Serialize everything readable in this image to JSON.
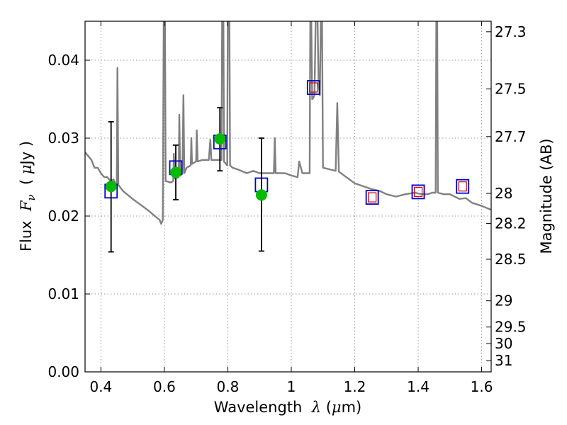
{
  "chart_data": {
    "type": "scatter",
    "title": "",
    "xlabel": "Wavelength  λ (μm)",
    "xlabel_parts": [
      "Wavelength  ",
      "λ",
      " (",
      "μ",
      "m)"
    ],
    "ylabel": "Flux  Fν  ( μJy )",
    "ylabel_parts": [
      "Flux  ",
      "F",
      "ν",
      "  ( ",
      "μ",
      "Jy )"
    ],
    "y2label": "Magnitude (AB)",
    "xlim": [
      0.35,
      1.63
    ],
    "ylim": [
      0.0,
      0.045
    ],
    "grid": true,
    "x_ticks": [
      {
        "value": 0.4,
        "label": "0.4"
      },
      {
        "value": 0.6,
        "label": "0.6"
      },
      {
        "value": 0.8,
        "label": "0.8"
      },
      {
        "value": 1.0,
        "label": "1"
      },
      {
        "value": 1.2,
        "label": "1.2"
      },
      {
        "value": 1.4,
        "label": "1.4"
      },
      {
        "value": 1.6,
        "label": "1.6"
      }
    ],
    "y_ticks": [
      {
        "value": 0.0,
        "label": "0.00"
      },
      {
        "value": 0.01,
        "label": "0.01"
      },
      {
        "value": 0.02,
        "label": "0.02"
      },
      {
        "value": 0.03,
        "label": "0.03"
      },
      {
        "value": 0.04,
        "label": "0.04"
      }
    ],
    "y2_ticks": [
      {
        "mag": 27.3,
        "label": "27.3"
      },
      {
        "mag": 27.5,
        "label": "27.5"
      },
      {
        "mag": 27.7,
        "label": "27.7"
      },
      {
        "mag": 28.0,
        "label": "28"
      },
      {
        "mag": 28.2,
        "label": "28.2"
      },
      {
        "mag": 28.5,
        "label": "28.5"
      },
      {
        "mag": 29.0,
        "label": "29"
      },
      {
        "mag": 29.5,
        "label": "29.5"
      },
      {
        "mag": 30.0,
        "label": "30"
      },
      {
        "mag": 31.0,
        "label": "31"
      }
    ],
    "colors": {
      "sed": "#808080",
      "observed": "#00bb00",
      "model_box": "#0000cc",
      "model_inner": "#cc0000",
      "errorbar": "#000000",
      "grid": "#9a9a9a"
    },
    "series": [
      {
        "kind": "line",
        "points": [
          [
            0.35,
            0.0282
          ],
          [
            0.37,
            0.0272
          ],
          [
            0.38,
            0.0262
          ],
          [
            0.39,
            0.0262
          ],
          [
            0.4,
            0.0255
          ],
          [
            0.41,
            0.025
          ],
          [
            0.42,
            0.025
          ],
          [
            0.43,
            0.0245
          ],
          [
            0.44,
            0.0247
          ],
          [
            0.445,
            0.0242
          ],
          [
            0.45,
            0.024
          ],
          [
            0.452,
            0.039
          ],
          [
            0.455,
            0.024
          ],
          [
            0.47,
            0.0232
          ],
          [
            0.5,
            0.0222
          ],
          [
            0.53,
            0.0213
          ],
          [
            0.55,
            0.0207
          ],
          [
            0.57,
            0.02
          ],
          [
            0.585,
            0.0195
          ],
          [
            0.59,
            0.019
          ],
          [
            0.595,
            0.0195
          ],
          [
            0.598,
            0.045
          ],
          [
            0.602,
            0.045
          ],
          [
            0.604,
            0.0245
          ],
          [
            0.62,
            0.0243
          ],
          [
            0.628,
            0.0245
          ],
          [
            0.63,
            0.028
          ],
          [
            0.633,
            0.0248
          ],
          [
            0.645,
            0.025
          ],
          [
            0.647,
            0.033
          ],
          [
            0.65,
            0.0252
          ],
          [
            0.657,
            0.0255
          ],
          [
            0.66,
            0.0355
          ],
          [
            0.663,
            0.0255
          ],
          [
            0.67,
            0.0262
          ],
          [
            0.683,
            0.0265
          ],
          [
            0.685,
            0.03
          ],
          [
            0.687,
            0.0267
          ],
          [
            0.7,
            0.027
          ],
          [
            0.702,
            0.031
          ],
          [
            0.705,
            0.027
          ],
          [
            0.72,
            0.0272
          ],
          [
            0.74,
            0.0272
          ],
          [
            0.745,
            0.0298
          ],
          [
            0.748,
            0.0272
          ],
          [
            0.76,
            0.0272
          ],
          [
            0.78,
            0.0272
          ],
          [
            0.782,
            0.045
          ],
          [
            0.786,
            0.045
          ],
          [
            0.788,
            0.027
          ],
          [
            0.798,
            0.0265
          ],
          [
            0.8,
            0.045
          ],
          [
            0.805,
            0.045
          ],
          [
            0.807,
            0.0265
          ],
          [
            0.815,
            0.0262
          ],
          [
            0.83,
            0.026
          ],
          [
            0.86,
            0.0255
          ],
          [
            0.88,
            0.0258
          ],
          [
            0.9,
            0.0255
          ],
          [
            0.93,
            0.0255
          ],
          [
            0.945,
            0.0255
          ],
          [
            0.948,
            0.03
          ],
          [
            0.951,
            0.0255
          ],
          [
            0.98,
            0.0255
          ],
          [
            1.0,
            0.0252
          ],
          [
            1.02,
            0.025
          ],
          [
            1.025,
            0.027
          ],
          [
            1.035,
            0.0255
          ],
          [
            1.05,
            0.0255
          ],
          [
            1.058,
            0.0255
          ],
          [
            1.06,
            0.045
          ],
          [
            1.063,
            0.045
          ],
          [
            1.066,
            0.035
          ],
          [
            1.07,
            0.0352
          ],
          [
            1.073,
            0.0355
          ],
          [
            1.077,
            0.045
          ],
          [
            1.083,
            0.045
          ],
          [
            1.086,
            0.037
          ],
          [
            1.09,
            0.0355
          ],
          [
            1.093,
            0.045
          ],
          [
            1.097,
            0.045
          ],
          [
            1.1,
            0.0262
          ],
          [
            1.12,
            0.026
          ],
          [
            1.14,
            0.0258
          ],
          [
            1.145,
            0.0345
          ],
          [
            1.15,
            0.0257
          ],
          [
            1.2,
            0.0242
          ],
          [
            1.25,
            0.0235
          ],
          [
            1.28,
            0.0232
          ],
          [
            1.3,
            0.0228
          ],
          [
            1.33,
            0.0225
          ],
          [
            1.36,
            0.0228
          ],
          [
            1.39,
            0.023
          ],
          [
            1.41,
            0.0228
          ],
          [
            1.43,
            0.0228
          ],
          [
            1.445,
            0.023
          ],
          [
            1.455,
            0.023
          ],
          [
            1.457,
            0.045
          ],
          [
            1.46,
            0.045
          ],
          [
            1.462,
            0.023
          ],
          [
            1.48,
            0.0228
          ],
          [
            1.5,
            0.0228
          ],
          [
            1.53,
            0.0222
          ],
          [
            1.55,
            0.0223
          ],
          [
            1.57,
            0.0217
          ],
          [
            1.6,
            0.0213
          ],
          [
            1.63,
            0.0208
          ]
        ]
      },
      {
        "kind": "errorbar",
        "points": [
          {
            "x": 0.432,
            "y": 0.0238,
            "low": 0.0154,
            "high": 0.0321
          },
          {
            "x": 0.636,
            "y": 0.0256,
            "low": 0.0221,
            "high": 0.0291
          },
          {
            "x": 0.775,
            "y": 0.0299,
            "low": 0.0258,
            "high": 0.0339
          },
          {
            "x": 0.906,
            "y": 0.0227,
            "low": 0.0155,
            "high": 0.03
          }
        ]
      },
      {
        "kind": "model-squares",
        "points": [
          {
            "x": 0.432,
            "y": 0.0232,
            "inner": false
          },
          {
            "x": 0.636,
            "y": 0.0262,
            "inner": false
          },
          {
            "x": 0.775,
            "y": 0.0295,
            "inner": false
          },
          {
            "x": 0.906,
            "y": 0.024,
            "inner": false
          },
          {
            "x": 1.07,
            "y": 0.0365,
            "inner": true
          },
          {
            "x": 1.255,
            "y": 0.0224,
            "inner": true
          },
          {
            "x": 1.4,
            "y": 0.0231,
            "inner": true
          },
          {
            "x": 1.54,
            "y": 0.0238,
            "inner": true
          }
        ]
      }
    ]
  }
}
